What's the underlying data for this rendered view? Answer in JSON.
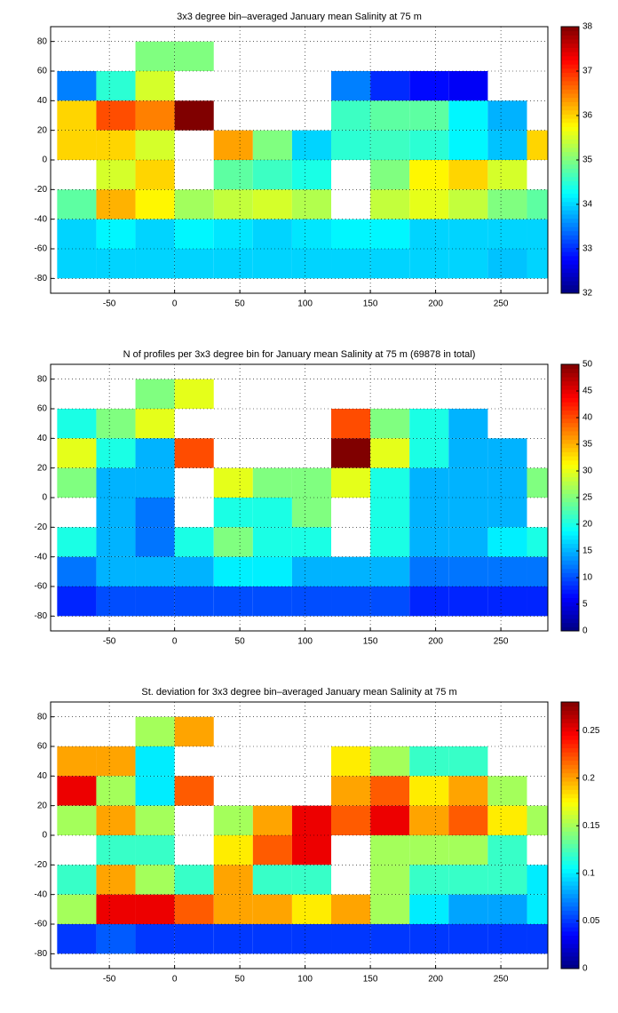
{
  "chart_data": [
    {
      "type": "heatmap",
      "title": "3x3 degree bin–averaged January mean Salinity at 75 m",
      "x": [
        -75,
        -45,
        -15,
        15,
        45,
        75,
        105,
        135,
        165,
        195,
        225,
        255,
        285
      ],
      "y": [
        70,
        50,
        30,
        10,
        -10,
        -30,
        -50,
        -70
      ],
      "values": [
        [
          null,
          null,
          35,
          35,
          null,
          null,
          null,
          null,
          null,
          null,
          null,
          null,
          null
        ],
        [
          33.5,
          34.5,
          35.5,
          null,
          null,
          null,
          null,
          33.5,
          33,
          32.8,
          32.7,
          null,
          null
        ],
        [
          36,
          36.8,
          36.5,
          38,
          null,
          null,
          null,
          34.6,
          34.8,
          34.8,
          34.2,
          33.8,
          null
        ],
        [
          36,
          36,
          35.5,
          null,
          36.3,
          35,
          34,
          34.5,
          34.6,
          34.5,
          34.2,
          33.9,
          36
        ],
        [
          null,
          35.5,
          36,
          null,
          34.8,
          34.6,
          34.4,
          null,
          35,
          35.8,
          36,
          35.5,
          null
        ],
        [
          34.8,
          36.2,
          35.8,
          35.2,
          35.4,
          35.5,
          35.3,
          null,
          35.4,
          35.6,
          35.4,
          35,
          34.8
        ],
        [
          34,
          34.2,
          34,
          34.2,
          34.1,
          34,
          34.1,
          34.2,
          34.2,
          34,
          34,
          34,
          34
        ],
        [
          34,
          34,
          34,
          34,
          34,
          34,
          34,
          34,
          34,
          34,
          34,
          33.9,
          34
        ]
      ],
      "xlim": [
        -95,
        286
      ],
      "ylim": [
        -90,
        90
      ],
      "xticks": [
        -50,
        0,
        50,
        100,
        150,
        200,
        250
      ],
      "yticks": [
        -80,
        -60,
        -40,
        -20,
        0,
        20,
        40,
        60,
        80
      ],
      "zlim": [
        32,
        38
      ],
      "zticks": [
        32,
        33,
        34,
        35,
        36,
        37,
        38
      ],
      "colormap": "jet",
      "grid": true
    },
    {
      "type": "heatmap",
      "title": "N of profiles per 3x3 degree bin for January mean Salinity at 75 m (69878 in total)",
      "x": [
        -75,
        -45,
        -15,
        15,
        45,
        75,
        105,
        135,
        165,
        195,
        225,
        255,
        285
      ],
      "y": [
        70,
        50,
        30,
        10,
        -10,
        -30,
        -50,
        -70
      ],
      "values": [
        [
          null,
          null,
          25,
          30,
          null,
          null,
          null,
          null,
          null,
          null,
          null,
          null,
          null
        ],
        [
          20,
          25,
          30,
          null,
          null,
          null,
          null,
          40,
          25,
          20,
          15,
          null,
          null
        ],
        [
          30,
          20,
          15,
          40,
          null,
          null,
          null,
          50,
          30,
          20,
          15,
          15,
          null
        ],
        [
          25,
          15,
          15,
          null,
          30,
          25,
          25,
          30,
          20,
          15,
          15,
          15,
          25
        ],
        [
          null,
          15,
          12,
          null,
          20,
          20,
          25,
          null,
          20,
          15,
          15,
          15,
          null
        ],
        [
          20,
          15,
          12,
          20,
          25,
          20,
          20,
          null,
          20,
          15,
          15,
          18,
          20
        ],
        [
          12,
          15,
          15,
          15,
          18,
          18,
          15,
          15,
          15,
          12,
          12,
          12,
          12
        ],
        [
          8,
          10,
          10,
          10,
          10,
          10,
          10,
          10,
          10,
          8,
          8,
          8,
          8
        ]
      ],
      "xlim": [
        -95,
        286
      ],
      "ylim": [
        -90,
        90
      ],
      "xticks": [
        -50,
        0,
        50,
        100,
        150,
        200,
        250
      ],
      "yticks": [
        -80,
        -60,
        -40,
        -20,
        0,
        20,
        40,
        60,
        80
      ],
      "zlim": [
        0,
        50
      ],
      "zticks": [
        0,
        5,
        10,
        15,
        20,
        25,
        30,
        35,
        40,
        45,
        50
      ],
      "colormap": "jet",
      "grid": true
    },
    {
      "type": "heatmap",
      "title": "St. deviation for 3x3 degree bin–averaged January mean Salinity at 75 m",
      "x": [
        -75,
        -45,
        -15,
        15,
        45,
        75,
        105,
        135,
        165,
        195,
        225,
        255,
        285
      ],
      "y": [
        70,
        50,
        30,
        10,
        -10,
        -30,
        -50,
        -70
      ],
      "values": [
        [
          null,
          null,
          0.15,
          0.2,
          null,
          null,
          null,
          null,
          null,
          null,
          null,
          null,
          null
        ],
        [
          0.2,
          0.2,
          0.1,
          null,
          null,
          null,
          null,
          0.18,
          0.15,
          0.12,
          0.12,
          null,
          null
        ],
        [
          0.25,
          0.15,
          0.1,
          0.22,
          null,
          null,
          null,
          0.2,
          0.22,
          0.18,
          0.2,
          0.15,
          null
        ],
        [
          0.15,
          0.2,
          0.15,
          null,
          0.15,
          0.2,
          0.25,
          0.22,
          0.25,
          0.2,
          0.22,
          0.18,
          0.15
        ],
        [
          null,
          0.12,
          0.12,
          null,
          0.18,
          0.22,
          0.25,
          null,
          0.15,
          0.15,
          0.15,
          0.12,
          null
        ],
        [
          0.12,
          0.2,
          0.15,
          0.12,
          0.2,
          0.12,
          0.12,
          null,
          0.15,
          0.12,
          0.12,
          0.12,
          0.1
        ],
        [
          0.15,
          0.25,
          0.25,
          0.22,
          0.2,
          0.2,
          0.18,
          0.2,
          0.15,
          0.1,
          0.08,
          0.08,
          0.1
        ],
        [
          0.05,
          0.06,
          0.05,
          0.05,
          0.05,
          0.05,
          0.05,
          0.05,
          0.05,
          0.05,
          0.05,
          0.05,
          0.05
        ]
      ],
      "xlim": [
        -95,
        286
      ],
      "ylim": [
        -90,
        90
      ],
      "xticks": [
        -50,
        0,
        50,
        100,
        150,
        200,
        250
      ],
      "yticks": [
        -80,
        -60,
        -40,
        -20,
        0,
        20,
        40,
        60,
        80
      ],
      "zlim": [
        0,
        0.28
      ],
      "zticks": [
        0,
        0.05,
        0.1,
        0.15,
        0.2,
        0.25
      ],
      "colormap": "jet",
      "grid": true
    }
  ]
}
